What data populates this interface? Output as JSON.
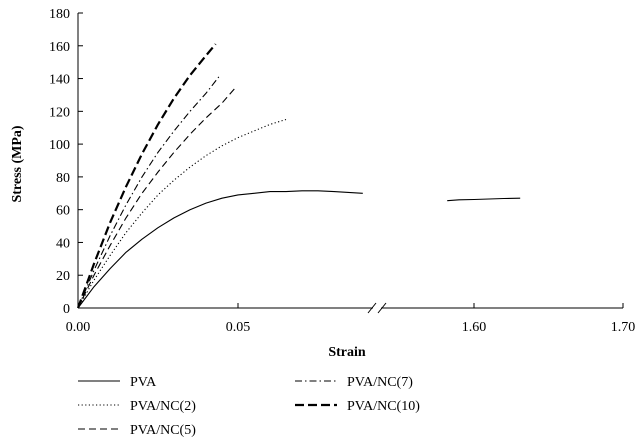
{
  "chart_data": {
    "type": "line",
    "xlabel": "Strain",
    "ylabel": "Stress (MPa)",
    "ylim": [
      0,
      180
    ],
    "y_ticks": [
      "0",
      "20",
      "40",
      "60",
      "80",
      "100",
      "120",
      "140",
      "160",
      "180"
    ],
    "x_ticks": [
      "0.00",
      "0.05",
      "1.60",
      "1.70"
    ],
    "x_axis_break": {
      "left_range": [
        0.0,
        0.09
      ],
      "right_range": [
        1.58,
        1.7
      ]
    },
    "legend_placement": "bottom",
    "series": [
      {
        "name": "PVA",
        "style": "solid",
        "x": [
          0,
          0.005,
          0.01,
          0.015,
          0.02,
          0.025,
          0.03,
          0.035,
          0.04,
          0.045,
          0.05,
          0.055,
          0.06,
          0.065,
          0.07,
          0.075,
          0.08,
          0.089,
          1.582,
          1.59,
          1.6,
          1.61,
          1.62,
          1.631
        ],
        "y": [
          0,
          13,
          24,
          34,
          42,
          49,
          55,
          60,
          64,
          67,
          69,
          70,
          71,
          71,
          71.5,
          71.5,
          71,
          70,
          65.5,
          66,
          66.2,
          66.5,
          66.8,
          67
        ]
      },
      {
        "name": "PVA/NC(2)",
        "style": "dotted",
        "x": [
          0,
          0.005,
          0.01,
          0.015,
          0.02,
          0.025,
          0.03,
          0.035,
          0.04,
          0.045,
          0.05,
          0.055,
          0.06,
          0.065
        ],
        "y": [
          0,
          17,
          32,
          46,
          58,
          69,
          78,
          86,
          93,
          99,
          104,
          108,
          112,
          115
        ]
      },
      {
        "name": "PVA/NC(5)",
        "style": "dashed",
        "x": [
          0,
          0.005,
          0.01,
          0.015,
          0.02,
          0.025,
          0.03,
          0.035,
          0.04,
          0.045,
          0.049
        ],
        "y": [
          0,
          20,
          38,
          55,
          70,
          83,
          95,
          106,
          116,
          125,
          134
        ]
      },
      {
        "name": "PVA/NC(7)",
        "style": "dash-dot",
        "x": [
          0,
          0.005,
          0.01,
          0.015,
          0.02,
          0.025,
          0.03,
          0.035,
          0.04,
          0.044
        ],
        "y": [
          0,
          23,
          44,
          63,
          80,
          95,
          108,
          120,
          131,
          141
        ]
      },
      {
        "name": "PVA/NC(10)",
        "style": "long-dash-bold",
        "x": [
          0,
          0.005,
          0.01,
          0.015,
          0.02,
          0.025,
          0.03,
          0.035,
          0.04,
          0.043
        ],
        "y": [
          0,
          27,
          52,
          74,
          94,
          112,
          128,
          142,
          154,
          161
        ]
      }
    ]
  }
}
